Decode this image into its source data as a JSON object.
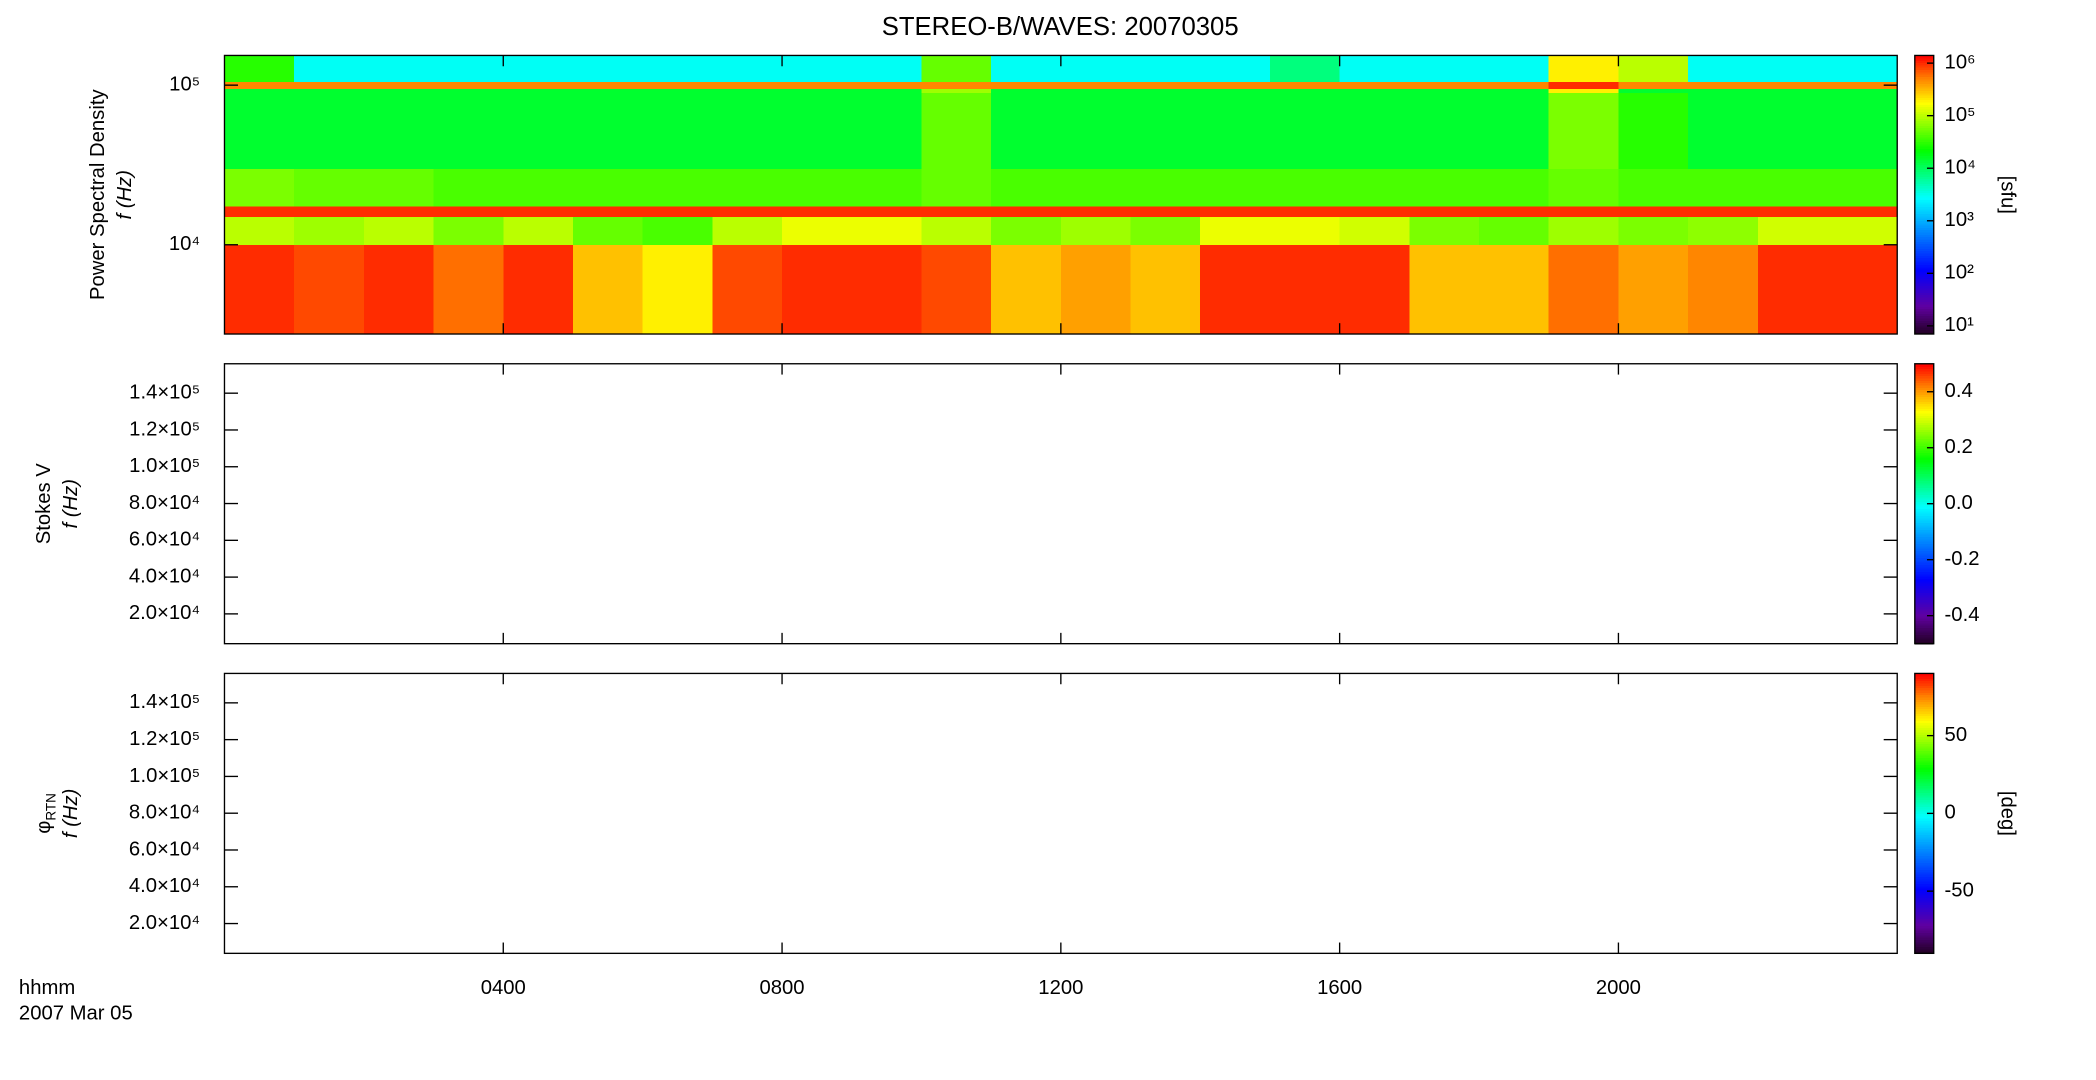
{
  "chart_data": [
    {
      "type": "heatmap",
      "title": "STEREO-B/WAVES: 20070305",
      "ylabel": [
        "Power Spectral Density",
        "f (Hz)"
      ],
      "ylog": true,
      "ylim": [
        2760,
        153500
      ],
      "yticks": [
        {
          "value": 10000,
          "label": "10⁴"
        },
        {
          "value": 100000,
          "label": "10⁵"
        }
      ],
      "x_bins": [
        0,
        1,
        2,
        3,
        4,
        5,
        6,
        7,
        8,
        9,
        10,
        11,
        12,
        13,
        14,
        15,
        16,
        17,
        18,
        19,
        20,
        21,
        22,
        23,
        24
      ],
      "y_bins": [
        2760,
        10000,
        15000,
        17500,
        30000,
        90000,
        95000,
        105000,
        153500
      ],
      "values": [
        [
          1000000.0,
          800000.0,
          1000000.0,
          600000.0,
          1000000.0,
          300000.0,
          200000.0,
          800000.0,
          1000000.0,
          1000000.0,
          800000.0,
          300000.0,
          400000.0,
          300000.0,
          1000000.0,
          1000000.0,
          1000000.0,
          300000.0,
          300000.0,
          600000.0,
          400000.0,
          500000.0,
          1000000.0,
          1000000.0
        ],
        [
          100000.0,
          80000.0,
          100000.0,
          60000.0,
          100000.0,
          50000.0,
          40000.0,
          100000.0,
          150000.0,
          150000.0,
          100000.0,
          60000.0,
          80000.0,
          60000.0,
          150000.0,
          150000.0,
          120000.0,
          60000.0,
          50000.0,
          80000.0,
          60000.0,
          70000.0,
          120000.0,
          120000.0
        ],
        [
          1000000.0,
          1000000.0,
          1000000.0,
          1000000.0,
          1000000.0,
          1000000.0,
          1000000.0,
          1000000.0,
          1000000.0,
          1000000.0,
          1000000.0,
          1000000.0,
          1000000.0,
          1000000.0,
          1000000.0,
          1000000.0,
          1000000.0,
          1000000.0,
          1000000.0,
          1000000.0,
          1000000.0,
          1000000.0,
          1000000.0,
          1000000.0
        ],
        [
          60000.0,
          50000.0,
          50000.0,
          40000.0,
          40000.0,
          40000.0,
          40000.0,
          40000.0,
          40000.0,
          40000.0,
          50000.0,
          40000.0,
          40000.0,
          40000.0,
          40000.0,
          40000.0,
          40000.0,
          40000.0,
          40000.0,
          50000.0,
          40000.0,
          40000.0,
          40000.0,
          40000.0
        ],
        [
          15000.0,
          15000.0,
          15000.0,
          15000.0,
          15000.0,
          15000.0,
          15000.0,
          15000.0,
          15000.0,
          15000.0,
          50000.0,
          15000.0,
          15000.0,
          15000.0,
          15000.0,
          15000.0,
          15000.0,
          15000.0,
          15000.0,
          60000.0,
          30000.0,
          15000.0,
          15000.0,
          15000.0
        ],
        [
          15000.0,
          15000.0,
          15000.0,
          15000.0,
          15000.0,
          15000.0,
          15000.0,
          15000.0,
          15000.0,
          15000.0,
          80000.0,
          15000.0,
          15000.0,
          15000.0,
          15000.0,
          15000.0,
          15000.0,
          15000.0,
          15000.0,
          200000.0,
          15000.0,
          15000.0,
          15000.0,
          15000.0
        ],
        [
          500000.0,
          500000.0,
          500000.0,
          500000.0,
          500000.0,
          500000.0,
          500000.0,
          500000.0,
          500000.0,
          500000.0,
          500000.0,
          500000.0,
          500000.0,
          500000.0,
          500000.0,
          500000.0,
          500000.0,
          500000.0,
          500000.0,
          1000000.0,
          500000.0,
          500000.0,
          500000.0,
          500000.0
        ],
        [
          30000.0,
          3000.0,
          3000.0,
          3000.0,
          3000.0,
          3000.0,
          3000.0,
          3000.0,
          3000.0,
          3000.0,
          50000.0,
          3000.0,
          3000.0,
          3000.0,
          3000.0,
          8000.0,
          3000.0,
          3000.0,
          3000.0,
          200000.0,
          100000.0,
          3000.0,
          3000.0,
          3000.0
        ]
      ],
      "colormap": "rainbow",
      "clog": true,
      "clim": [
        7,
        1400000
      ],
      "cticks": [
        {
          "value": 10,
          "label": "10¹"
        },
        {
          "value": 100,
          "label": "10²"
        },
        {
          "value": 1000,
          "label": "10³"
        },
        {
          "value": 10000,
          "label": "10⁴"
        },
        {
          "value": 100000,
          "label": "10⁵"
        },
        {
          "value": 1000000,
          "label": "10⁶"
        }
      ],
      "clabel": "[sfu]"
    },
    {
      "type": "heatmap",
      "ylabel": [
        "Stokes V",
        "f (Hz)"
      ],
      "ylim": [
        3800,
        156000
      ],
      "yticks": [
        {
          "value": 20000,
          "label": "2.0×10⁴"
        },
        {
          "value": 40000,
          "label": "4.0×10⁴"
        },
        {
          "value": 60000,
          "label": "6.0×10⁴"
        },
        {
          "value": 80000,
          "label": "8.0×10⁴"
        },
        {
          "value": 100000,
          "label": "1.0×10⁵"
        },
        {
          "value": 120000,
          "label": "1.2×10⁵"
        },
        {
          "value": 140000,
          "label": "1.4×10⁵"
        }
      ],
      "colormap": "rainbow",
      "clim": [
        -0.5,
        0.5
      ],
      "cticks": [
        -0.4,
        -0.2,
        {
          "value": 0,
          "label": "0.0"
        },
        0.2,
        0.4
      ]
    },
    {
      "type": "heatmap",
      "ylabel": [
        "φ",
        "f (Hz)"
      ],
      "ylabel_subscript": "RTN",
      "ylim": [
        3800,
        156000
      ],
      "yticks": [
        {
          "value": 20000,
          "label": "2.0×10⁴"
        },
        {
          "value": 40000,
          "label": "4.0×10⁴"
        },
        {
          "value": 60000,
          "label": "6.0×10⁴"
        },
        {
          "value": 80000,
          "label": "8.0×10⁴"
        },
        {
          "value": 100000,
          "label": "1.0×10⁵"
        },
        {
          "value": 120000,
          "label": "1.2×10⁵"
        },
        {
          "value": 140000,
          "label": "1.4×10⁵"
        }
      ],
      "colormap": "rainbow",
      "clim": [
        -90,
        90
      ],
      "cticks": [
        -50,
        0,
        50
      ],
      "clabel": "[deg]",
      "xlim": [
        0,
        24
      ],
      "xticks": [
        {
          "value": 4,
          "label": "0400"
        },
        {
          "value": 8,
          "label": "0800"
        },
        {
          "value": 12,
          "label": "1200"
        },
        {
          "value": 16,
          "label": "1600"
        },
        {
          "value": 20,
          "label": "2000"
        }
      ],
      "xlabel": [
        "hhmm",
        "2007 Mar 05"
      ]
    }
  ]
}
